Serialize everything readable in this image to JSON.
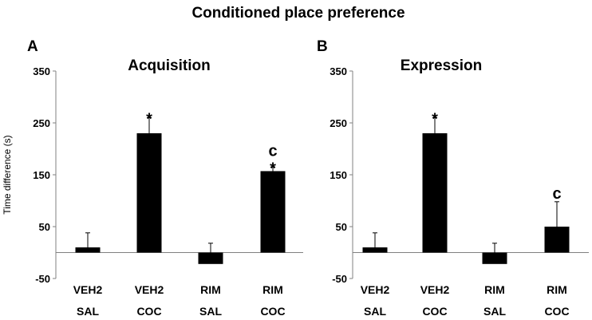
{
  "figure_title": "Conditioned place preference",
  "chart_data": [
    {
      "type": "bar",
      "panel": "A",
      "title": "Acquisition",
      "ylabel": "Time difference (s)",
      "xlabel": "",
      "ylim": [
        -50,
        350
      ],
      "yticks": [
        -50,
        50,
        150,
        250,
        350
      ],
      "categories": [
        [
          "VEH2",
          "SAL"
        ],
        [
          "VEH2",
          "COC"
        ],
        [
          "RIM",
          "SAL"
        ],
        [
          "RIM",
          "COC"
        ]
      ],
      "values": [
        10,
        230,
        -22,
        157
      ],
      "errors": [
        28,
        30,
        40,
        8
      ],
      "annotations": [
        "",
        "*",
        "",
        "c\n*"
      ],
      "grid": false,
      "bar_color": "#000000"
    },
    {
      "type": "bar",
      "panel": "B",
      "title": "Expression",
      "ylabel": "",
      "xlabel": "",
      "ylim": [
        -50,
        350
      ],
      "yticks": [
        -50,
        50,
        150,
        250,
        350
      ],
      "categories": [
        [
          "VEH2",
          "SAL"
        ],
        [
          "VEH2",
          "COC"
        ],
        [
          "RIM",
          "SAL"
        ],
        [
          "RIM",
          "COC"
        ]
      ],
      "values": [
        10,
        230,
        -22,
        50
      ],
      "errors": [
        28,
        30,
        40,
        48
      ],
      "annotations": [
        "",
        "*",
        "",
        "c"
      ],
      "grid": false,
      "bar_color": "#000000"
    }
  ]
}
